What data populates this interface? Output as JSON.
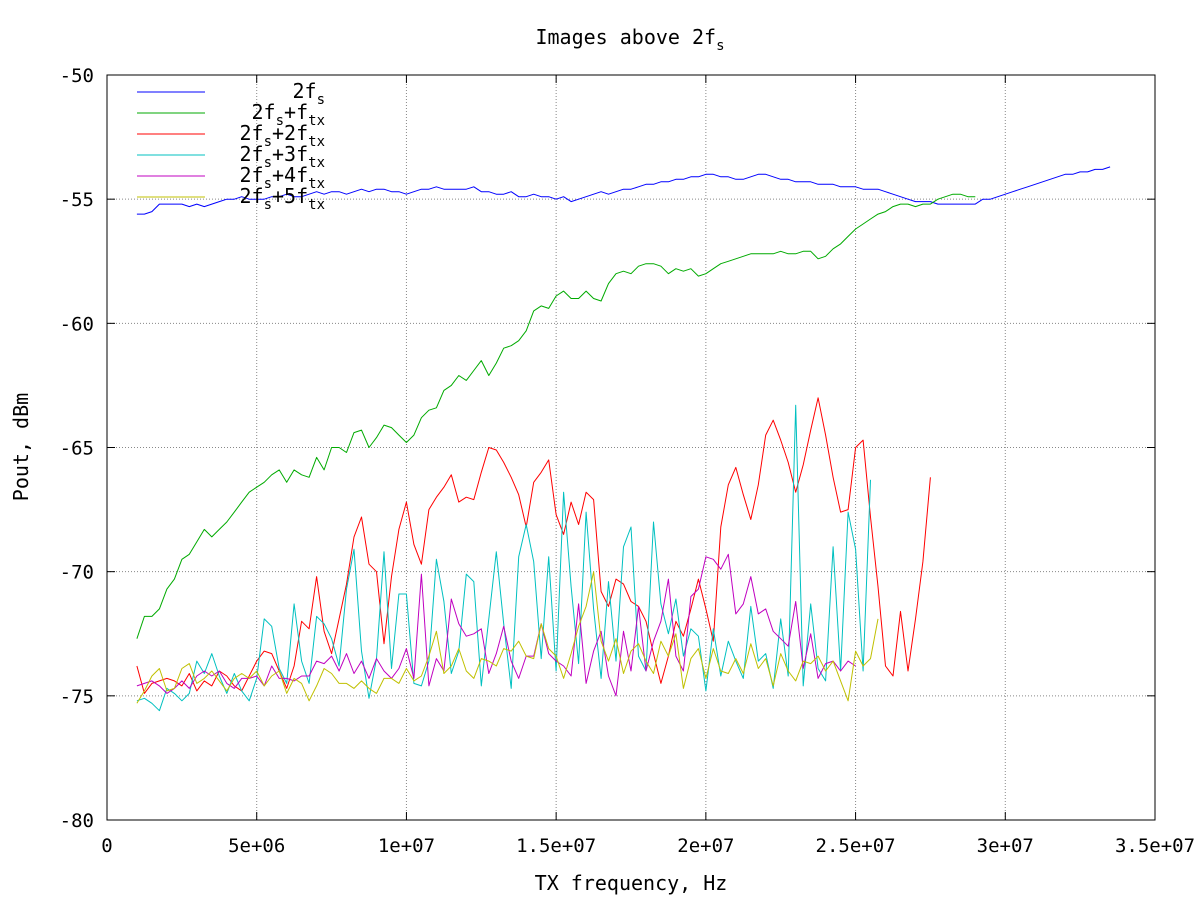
{
  "chart_data": {
    "type": "line",
    "title": {
      "base": "Images above 2f",
      "sub": "s"
    },
    "xlabel": "TX frequency, Hz",
    "ylabel": "Pout, dBm",
    "xlim": [
      0,
      35000000
    ],
    "ylim": [
      -80,
      -50
    ],
    "xticks": [
      {
        "value": 0,
        "label": "0"
      },
      {
        "value": 5000000,
        "label": "5e+06"
      },
      {
        "value": 10000000,
        "label": "1e+07"
      },
      {
        "value": 15000000,
        "label": "1.5e+07"
      },
      {
        "value": 20000000,
        "label": "2e+07"
      },
      {
        "value": 25000000,
        "label": "2.5e+07"
      },
      {
        "value": 30000000,
        "label": "3e+07"
      },
      {
        "value": 35000000,
        "label": "3.5e+07"
      }
    ],
    "yticks": [
      {
        "value": -50,
        "label": "-50"
      },
      {
        "value": -55,
        "label": "-55"
      },
      {
        "value": -60,
        "label": "-60"
      },
      {
        "value": -65,
        "label": "-65"
      },
      {
        "value": -70,
        "label": "-70"
      },
      {
        "value": -75,
        "label": "-75"
      },
      {
        "value": -80,
        "label": "-80"
      }
    ],
    "grid": true,
    "legend_position": "top-left",
    "x_start": 1000000,
    "x_step": 250000,
    "series": [
      {
        "name": "2fs",
        "label_parts": [
          [
            "2f",
            ""
          ],
          [
            "s",
            "sub"
          ]
        ],
        "color": "#0000ff",
        "values": [
          -55.6,
          -55.6,
          -55.5,
          -55.2,
          -55.2,
          -55.2,
          -55.2,
          -55.3,
          -55.2,
          -55.3,
          -55.2,
          -55.1,
          -55.0,
          -55.0,
          -54.9,
          -55.0,
          -55.0,
          -55.0,
          -54.9,
          -54.9,
          -54.8,
          -54.9,
          -54.9,
          -54.8,
          -54.7,
          -54.8,
          -54.7,
          -54.7,
          -54.8,
          -54.7,
          -54.6,
          -54.7,
          -54.6,
          -54.6,
          -54.7,
          -54.7,
          -54.8,
          -54.7,
          -54.6,
          -54.6,
          -54.5,
          -54.6,
          -54.6,
          -54.6,
          -54.6,
          -54.5,
          -54.7,
          -54.7,
          -54.8,
          -54.8,
          -54.7,
          -54.9,
          -54.9,
          -54.8,
          -54.9,
          -54.9,
          -55.0,
          -54.9,
          -55.1,
          -55.0,
          -54.9,
          -54.8,
          -54.7,
          -54.8,
          -54.7,
          -54.6,
          -54.6,
          -54.5,
          -54.4,
          -54.4,
          -54.3,
          -54.3,
          -54.2,
          -54.2,
          -54.1,
          -54.1,
          -54.0,
          -54.0,
          -54.1,
          -54.1,
          -54.2,
          -54.2,
          -54.1,
          -54.0,
          -54.0,
          -54.1,
          -54.2,
          -54.2,
          -54.3,
          -54.3,
          -54.3,
          -54.4,
          -54.4,
          -54.4,
          -54.5,
          -54.5,
          -54.5,
          -54.6,
          -54.6,
          -54.6,
          -54.7,
          -54.8,
          -54.9,
          -55.0,
          -55.1,
          -55.1,
          -55.1,
          -55.2,
          -55.2,
          -55.2,
          -55.2,
          -55.2,
          -55.2,
          -55.0,
          -55.0,
          -54.9,
          -54.8,
          -54.7,
          -54.6,
          -54.5,
          -54.4,
          -54.3,
          -54.2,
          -54.1,
          -54.0,
          -54.0,
          -53.9,
          -53.9,
          -53.8,
          -53.8,
          -53.7
        ]
      },
      {
        "name": "2fs+ftx",
        "label_parts": [
          [
            "2f",
            ""
          ],
          [
            "s",
            "sub"
          ],
          [
            "+f",
            ""
          ],
          [
            "tx",
            "sub"
          ]
        ],
        "color": "#00aa00",
        "values": [
          -72.7,
          -71.8,
          -71.8,
          -71.5,
          -70.7,
          -70.3,
          -69.5,
          -69.3,
          -68.8,
          -68.3,
          -68.6,
          -68.3,
          -68.0,
          -67.6,
          -67.2,
          -66.8,
          -66.6,
          -66.4,
          -66.1,
          -65.9,
          -66.4,
          -65.9,
          -66.1,
          -66.2,
          -65.4,
          -65.9,
          -65.0,
          -65.0,
          -65.2,
          -64.4,
          -64.3,
          -65.0,
          -64.6,
          -64.1,
          -64.2,
          -64.5,
          -64.8,
          -64.5,
          -63.8,
          -63.5,
          -63.4,
          -62.7,
          -62.5,
          -62.1,
          -62.3,
          -61.9,
          -61.5,
          -62.1,
          -61.6,
          -61.0,
          -60.9,
          -60.7,
          -60.3,
          -59.5,
          -59.3,
          -59.4,
          -58.9,
          -58.7,
          -59.0,
          -59.0,
          -58.7,
          -59.0,
          -59.1,
          -58.4,
          -58.0,
          -57.9,
          -58.0,
          -57.7,
          -57.6,
          -57.6,
          -57.7,
          -58.0,
          -57.8,
          -57.9,
          -57.8,
          -58.1,
          -58.0,
          -57.8,
          -57.6,
          -57.5,
          -57.4,
          -57.3,
          -57.2,
          -57.2,
          -57.2,
          -57.2,
          -57.1,
          -57.2,
          -57.2,
          -57.1,
          -57.1,
          -57.4,
          -57.3,
          -57.0,
          -56.8,
          -56.5,
          -56.2,
          -56.0,
          -55.8,
          -55.6,
          -55.5,
          -55.3,
          -55.2,
          -55.2,
          -55.3,
          -55.2,
          -55.2,
          -55.0,
          -54.9,
          -54.8,
          -54.8,
          -54.9,
          -54.9
        ]
      },
      {
        "name": "2fs+2ftx",
        "label_parts": [
          [
            "2f",
            ""
          ],
          [
            "s",
            "sub"
          ],
          [
            "+2f",
            ""
          ],
          [
            "tx",
            "sub"
          ]
        ],
        "color": "#ff0000",
        "values": [
          -73.8,
          -74.9,
          -74.5,
          -74.4,
          -74.3,
          -74.4,
          -74.6,
          -74.1,
          -74.8,
          -74.4,
          -74.6,
          -74.0,
          -74.2,
          -74.6,
          -74.8,
          -74.2,
          -73.6,
          -73.2,
          -73.3,
          -74.0,
          -74.7,
          -73.8,
          -72.0,
          -72.3,
          -70.2,
          -72.4,
          -73.3,
          -71.9,
          -70.5,
          -68.6,
          -67.8,
          -69.7,
          -70.0,
          -72.9,
          -70.2,
          -68.3,
          -67.2,
          -68.9,
          -69.7,
          -67.5,
          -67.0,
          -66.6,
          -66.1,
          -67.2,
          -67.0,
          -67.1,
          -66.0,
          -65.0,
          -65.1,
          -65.6,
          -66.2,
          -66.9,
          -68.2,
          -66.4,
          -66.0,
          -65.5,
          -67.7,
          -68.5,
          -67.2,
          -68.1,
          -66.8,
          -67.1,
          -70.8,
          -71.4,
          -70.3,
          -70.5,
          -71.2,
          -71.4,
          -72.0,
          -73.3,
          -74.5,
          -73.4,
          -72.0,
          -72.6,
          -71.5,
          -70.3,
          -71.5,
          -72.8,
          -68.2,
          -66.5,
          -65.8,
          -66.9,
          -67.9,
          -66.5,
          -64.5,
          -63.9,
          -64.7,
          -65.6,
          -66.8,
          -65.7,
          -64.3,
          -63.0,
          -64.5,
          -66.2,
          -67.6,
          -67.5,
          -65.0,
          -64.7,
          -67.8,
          -70.6,
          -73.8,
          -74.2,
          -71.6,
          -74.0,
          -71.9,
          -69.6,
          -66.2
        ]
      },
      {
        "name": "2fs+3ftx",
        "label_parts": [
          [
            "2f",
            ""
          ],
          [
            "s",
            "sub"
          ],
          [
            "+3f",
            ""
          ],
          [
            "tx",
            "sub"
          ]
        ],
        "color": "#00c0c0",
        "values": [
          -75.2,
          -75.1,
          -75.3,
          -75.6,
          -74.7,
          -74.9,
          -75.2,
          -74.9,
          -73.6,
          -74.1,
          -73.3,
          -74.2,
          -74.9,
          -74.1,
          -74.8,
          -75.2,
          -74.3,
          -71.9,
          -72.2,
          -73.9,
          -74.5,
          -71.3,
          -73.6,
          -74.5,
          -71.8,
          -72.1,
          -72.7,
          -73.8,
          -70.7,
          -69.1,
          -73.2,
          -75.1,
          -73.5,
          -69.2,
          -73.9,
          -70.9,
          -70.9,
          -74.5,
          -74.6,
          -73.6,
          -69.5,
          -71.2,
          -74.1,
          -73.2,
          -70.1,
          -70.4,
          -74.6,
          -71.9,
          -69.2,
          -72.1,
          -74.7,
          -69.4,
          -68.1,
          -69.6,
          -73.5,
          -69.4,
          -74.0,
          -66.8,
          -70.6,
          -73.7,
          -67.6,
          -71.5,
          -74.3,
          -70.4,
          -73.6,
          -69.0,
          -68.2,
          -73.4,
          -74.0,
          -68.0,
          -71.3,
          -72.5,
          -71.1,
          -73.4,
          -72.3,
          -72.6,
          -74.8,
          -72.3,
          -74.2,
          -72.8,
          -73.6,
          -74.3,
          -71.4,
          -73.6,
          -73.3,
          -74.7,
          -71.9,
          -74.2,
          -63.3,
          -74.6,
          -71.3,
          -73.9,
          -74.4,
          -69.0,
          -74.0,
          -67.6,
          -69.1,
          -74.0,
          -66.3
        ]
      },
      {
        "name": "2fs+4ftx",
        "label_parts": [
          [
            "2f",
            ""
          ],
          [
            "s",
            "sub"
          ],
          [
            "+4f",
            ""
          ],
          [
            "tx",
            "sub"
          ]
        ],
        "color": "#c000c0",
        "values": [
          -74.6,
          -74.5,
          -74.4,
          -74.6,
          -74.9,
          -74.7,
          -74.4,
          -74.7,
          -74.2,
          -74.0,
          -74.2,
          -74.0,
          -74.5,
          -74.7,
          -74.3,
          -74.3,
          -74.2,
          -74.6,
          -73.8,
          -74.3,
          -74.3,
          -74.4,
          -74.2,
          -74.2,
          -73.6,
          -73.7,
          -73.4,
          -74.0,
          -73.3,
          -74.1,
          -73.6,
          -74.3,
          -73.5,
          -74.0,
          -74.3,
          -73.9,
          -73.1,
          -74.3,
          -70.1,
          -74.6,
          -73.5,
          -74.0,
          -71.1,
          -72.1,
          -72.6,
          -72.5,
          -72.3,
          -74.1,
          -73.3,
          -72.2,
          -73.6,
          -74.3,
          -73.4,
          -73.4,
          -72.1,
          -73.3,
          -73.6,
          -73.8,
          -74.2,
          -71.3,
          -74.5,
          -73.2,
          -72.4,
          -74.2,
          -75.0,
          -72.4,
          -74.0,
          -71.4,
          -74.0,
          -72.8,
          -72.0,
          -70.3,
          -73.4,
          -74.0,
          -71.0,
          -70.7,
          -69.4,
          -69.5,
          -69.9,
          -69.3,
          -71.7,
          -71.3,
          -70.2,
          -71.7,
          -71.5,
          -72.4,
          -72.7,
          -73.0,
          -71.2,
          -73.9,
          -72.5,
          -74.3,
          -73.7,
          -73.6,
          -74.0,
          -73.6,
          -73.8
        ]
      },
      {
        "name": "2fs+5ftx",
        "label_parts": [
          [
            "2f",
            ""
          ],
          [
            "s",
            "sub"
          ],
          [
            "+5f",
            ""
          ],
          [
            "tx",
            "sub"
          ]
        ],
        "color": "#c0c000",
        "values": [
          -75.3,
          -74.8,
          -74.2,
          -73.9,
          -74.8,
          -74.7,
          -73.9,
          -73.7,
          -74.5,
          -74.3,
          -74.0,
          -74.4,
          -74.8,
          -74.3,
          -74.1,
          -74.3,
          -74.0,
          -74.6,
          -74.2,
          -74.0,
          -74.9,
          -74.3,
          -74.5,
          -75.2,
          -74.6,
          -73.9,
          -74.1,
          -74.5,
          -74.5,
          -74.7,
          -74.4,
          -74.7,
          -74.9,
          -74.3,
          -74.3,
          -74.5,
          -73.9,
          -74.4,
          -74.2,
          -73.4,
          -72.4,
          -74.1,
          -73.8,
          -73.1,
          -74.0,
          -74.3,
          -73.5,
          -73.6,
          -73.8,
          -73.1,
          -73.2,
          -72.8,
          -73.4,
          -73.5,
          -72.1,
          -73.1,
          -73.4,
          -74.3,
          -73.3,
          -72.2,
          -71.4,
          -70.0,
          -72.8,
          -73.6,
          -72.7,
          -74.1,
          -73.2,
          -72.9,
          -73.6,
          -74.1,
          -72.8,
          -73.4,
          -72.5,
          -74.7,
          -73.5,
          -73.1,
          -74.3,
          -73.1,
          -74.0,
          -74.1,
          -73.5,
          -74.1,
          -72.9,
          -73.9,
          -73.5,
          -74.6,
          -73.3,
          -74.0,
          -74.4,
          -73.6,
          -73.7,
          -73.4,
          -74.0,
          -73.6,
          -74.4,
          -75.2,
          -73.2,
          -73.8,
          -73.5,
          -71.9
        ]
      }
    ]
  }
}
